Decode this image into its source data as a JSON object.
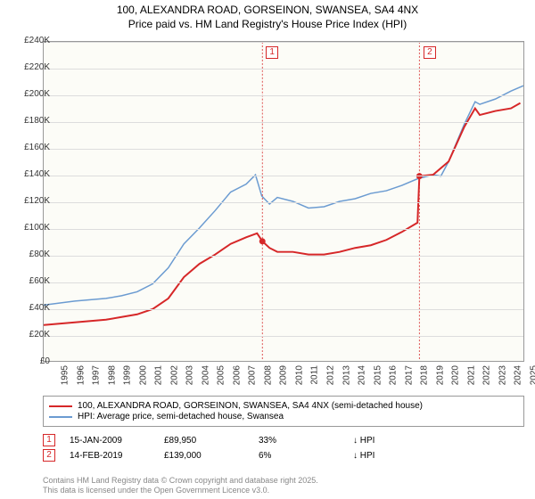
{
  "title": {
    "line1": "100, ALEXANDRA ROAD, GORSEINON, SWANSEA, SA4 4NX",
    "line2": "Price paid vs. HM Land Registry's House Price Index (HPI)"
  },
  "chart": {
    "type": "line",
    "background_color": "#fcfcf7",
    "grid_color": "#dddddd",
    "border_color": "#999999",
    "ylim": [
      0,
      240000
    ],
    "ytick_step": 20000,
    "yticks": [
      "£0",
      "£20K",
      "£40K",
      "£60K",
      "£80K",
      "£100K",
      "£120K",
      "£140K",
      "£160K",
      "£180K",
      "£200K",
      "£220K",
      "£240K"
    ],
    "xlim": [
      1995,
      2025.8
    ],
    "xticks": [
      1995,
      1996,
      1997,
      1998,
      1999,
      2000,
      2001,
      2002,
      2003,
      2004,
      2005,
      2006,
      2007,
      2008,
      2009,
      2010,
      2011,
      2012,
      2013,
      2014,
      2015,
      2016,
      2017,
      2018,
      2019,
      2020,
      2021,
      2022,
      2023,
      2024,
      2025
    ],
    "series": [
      {
        "name": "hpi",
        "color": "#6b9bd1",
        "width": 1.5,
        "points": [
          [
            1995,
            42000
          ],
          [
            1996,
            43500
          ],
          [
            1997,
            45000
          ],
          [
            1998,
            46000
          ],
          [
            1999,
            47000
          ],
          [
            2000,
            49000
          ],
          [
            2001,
            52000
          ],
          [
            2002,
            58000
          ],
          [
            2003,
            70000
          ],
          [
            2004,
            88000
          ],
          [
            2005,
            100000
          ],
          [
            2006,
            113000
          ],
          [
            2007,
            127000
          ],
          [
            2008,
            133000
          ],
          [
            2008.6,
            140000
          ],
          [
            2009,
            124000
          ],
          [
            2009.5,
            118000
          ],
          [
            2010,
            123000
          ],
          [
            2011,
            120000
          ],
          [
            2012,
            115000
          ],
          [
            2013,
            116000
          ],
          [
            2014,
            120000
          ],
          [
            2015,
            122000
          ],
          [
            2016,
            126000
          ],
          [
            2017,
            128000
          ],
          [
            2018,
            132000
          ],
          [
            2019,
            137000
          ],
          [
            2020,
            140000
          ],
          [
            2020.5,
            139000
          ],
          [
            2021,
            150000
          ],
          [
            2022,
            178000
          ],
          [
            2022.7,
            195000
          ],
          [
            2023,
            193000
          ],
          [
            2024,
            197000
          ],
          [
            2025,
            203000
          ],
          [
            2025.8,
            207000
          ]
        ]
      },
      {
        "name": "price_paid",
        "color": "#d62728",
        "width": 2,
        "points": [
          [
            1995,
            27000
          ],
          [
            1996,
            28000
          ],
          [
            1997,
            29000
          ],
          [
            1998,
            30000
          ],
          [
            1999,
            31000
          ],
          [
            2000,
            33000
          ],
          [
            2001,
            35000
          ],
          [
            2002,
            39000
          ],
          [
            2003,
            47000
          ],
          [
            2004,
            63000
          ],
          [
            2005,
            73000
          ],
          [
            2006,
            80000
          ],
          [
            2007,
            88000
          ],
          [
            2008,
            93000
          ],
          [
            2008.7,
            96000
          ],
          [
            2009.04,
            89950
          ],
          [
            2009.5,
            85000
          ],
          [
            2010,
            82000
          ],
          [
            2011,
            82000
          ],
          [
            2012,
            80000
          ],
          [
            2013,
            80000
          ],
          [
            2014,
            82000
          ],
          [
            2015,
            85000
          ],
          [
            2016,
            87000
          ],
          [
            2017,
            91000
          ],
          [
            2018,
            97000
          ],
          [
            2019,
            104000
          ],
          [
            2019.12,
            139000
          ],
          [
            2020,
            140000
          ],
          [
            2021,
            150000
          ],
          [
            2022,
            176000
          ],
          [
            2022.7,
            190000
          ],
          [
            2023,
            185000
          ],
          [
            2024,
            188000
          ],
          [
            2025,
            190000
          ],
          [
            2025.6,
            194000
          ]
        ]
      }
    ],
    "sale_markers": [
      {
        "id": "1",
        "x": 2009.04,
        "y": 89950
      },
      {
        "id": "2",
        "x": 2019.12,
        "y": 139000
      }
    ]
  },
  "legend": {
    "items": [
      {
        "color": "#d62728",
        "label": "100, ALEXANDRA ROAD, GORSEINON, SWANSEA, SA4 4NX (semi-detached house)"
      },
      {
        "color": "#6b9bd1",
        "label": "HPI: Average price, semi-detached house, Swansea"
      }
    ]
  },
  "sales": [
    {
      "marker": "1",
      "date": "15-JAN-2009",
      "price": "£89,950",
      "pct": "33%",
      "direction": "↓ HPI"
    },
    {
      "marker": "2",
      "date": "14-FEB-2019",
      "price": "£139,000",
      "pct": "6%",
      "direction": "↓ HPI"
    }
  ],
  "footer": {
    "line1": "Contains HM Land Registry data © Crown copyright and database right 2025.",
    "line2": "This data is licensed under the Open Government Licence v3.0."
  }
}
